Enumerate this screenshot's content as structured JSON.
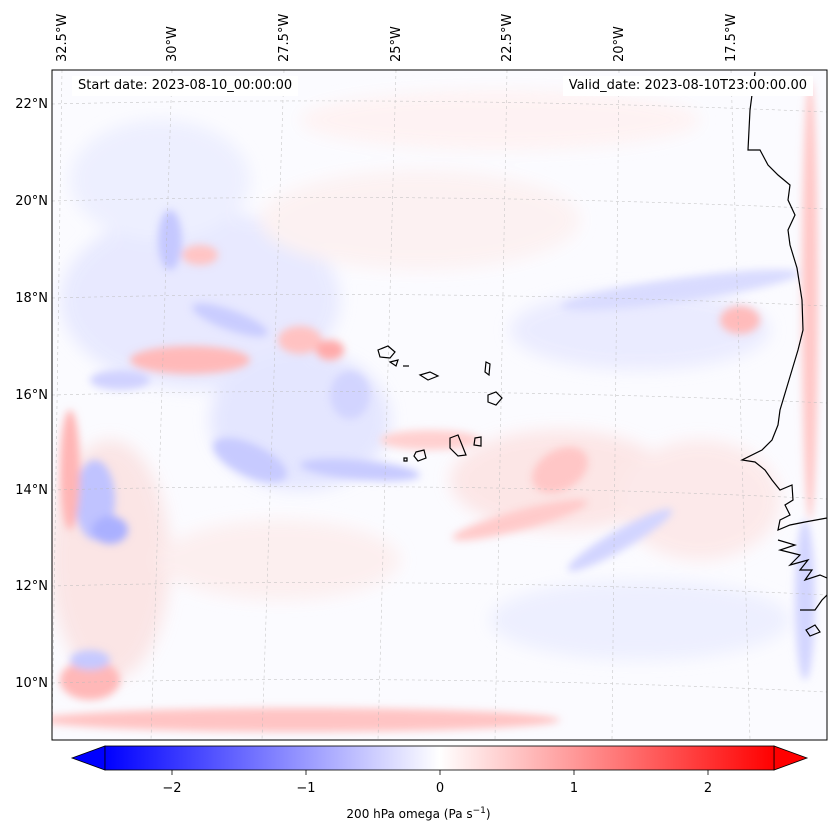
{
  "map": {
    "start_date_text": "Start date: 2023-08-10_00:00:00",
    "valid_date_text": "Valid_date: 2023-08-10T23:00:00.00",
    "lon_labels": [
      "32.5°W",
      "30°W",
      "27.5°W",
      "25°W",
      "22.5°W",
      "20°W",
      "17.5°W"
    ],
    "lat_labels": [
      "22°N",
      "20°N",
      "18°N",
      "16°N",
      "14°N",
      "12°N",
      "10°N"
    ],
    "colorbar_ticks": [
      "−2",
      "−1",
      "0",
      "1",
      "2"
    ],
    "colorbar_label_main": "200 hPa omega (Pa s",
    "colorbar_label_exp": "−1",
    "colorbar_label_close": ")",
    "colormap": {
      "low": "#0000ff",
      "mid": "#ffffff",
      "high": "#ff0000"
    },
    "colorbar_range": [
      -2.6,
      2.6
    ]
  }
}
